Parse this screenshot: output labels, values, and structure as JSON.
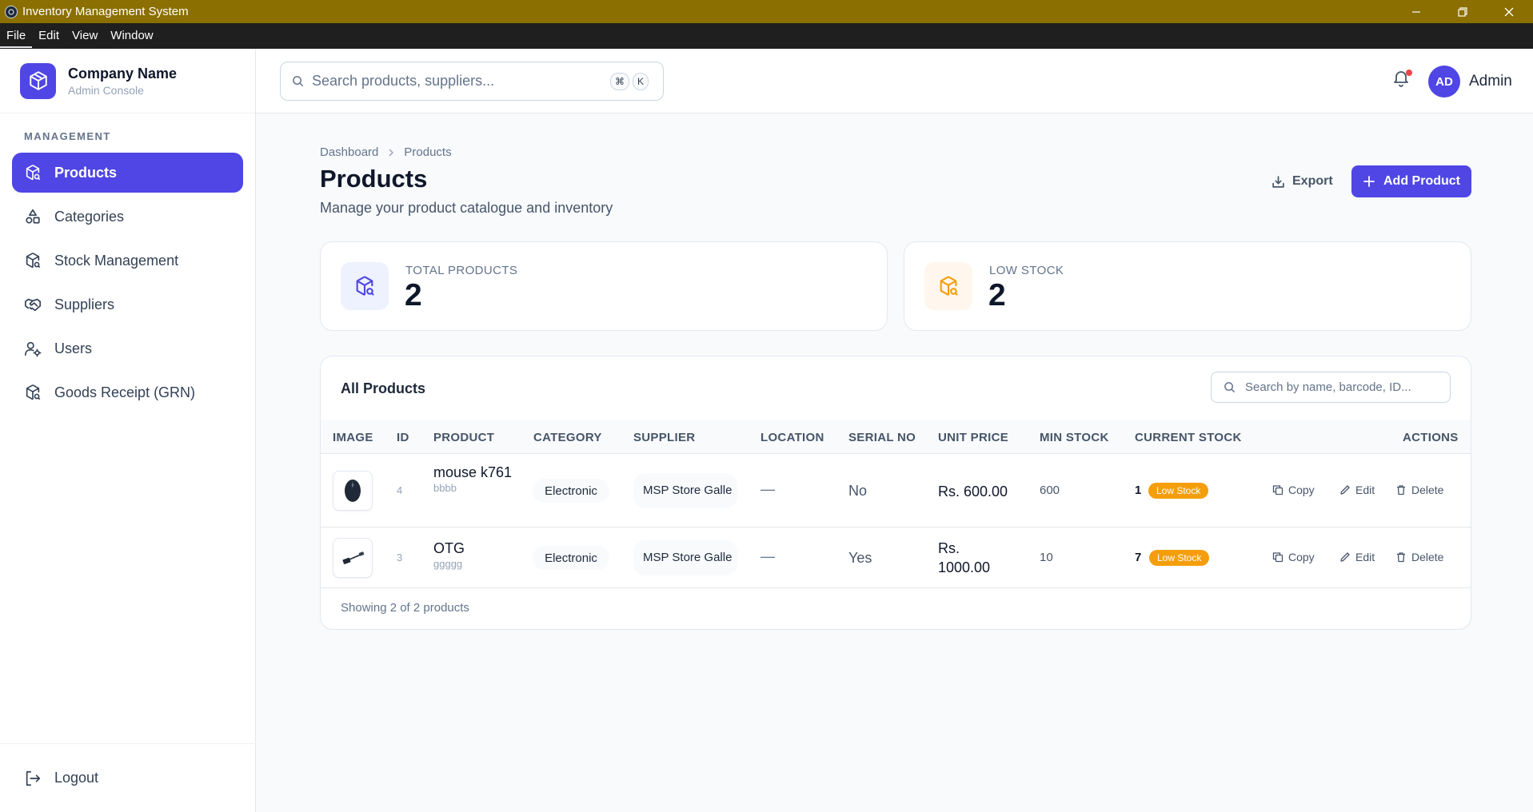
{
  "window": {
    "title": "Inventory Management System",
    "controls": [
      "minimize-icon",
      "restore-icon",
      "close-icon"
    ]
  },
  "menubar": [
    "File",
    "Edit",
    "View",
    "Window"
  ],
  "sidebar": {
    "brand_name": "Company Name",
    "brand_sub": "Admin Console",
    "section": "MANAGEMENT",
    "items": [
      {
        "label": "Products",
        "icon": "package-search-icon",
        "active": true
      },
      {
        "label": "Categories",
        "icon": "shapes-icon",
        "active": false
      },
      {
        "label": "Stock Management",
        "icon": "package-search-icon",
        "active": false
      },
      {
        "label": "Suppliers",
        "icon": "handshake-icon",
        "active": false
      },
      {
        "label": "Users",
        "icon": "user-cog-icon",
        "active": false
      },
      {
        "label": "Goods Receipt (GRN)",
        "icon": "package-search-icon",
        "active": false
      }
    ],
    "logout": "Logout"
  },
  "header": {
    "search_placeholder": "Search products, suppliers...",
    "kbd_cmd": "⌘",
    "kbd_k": "K",
    "avatar_initials": "AD",
    "user_name": "Admin"
  },
  "main": {
    "breadcrumb": [
      "Dashboard",
      "Products"
    ],
    "title": "Products",
    "subtitle": "Manage your product catalogue and inventory",
    "export_label": "Export",
    "add_label": "Add Product"
  },
  "stats": [
    {
      "label": "TOTAL PRODUCTS",
      "value": "2",
      "color": "#4f46e5",
      "bg": "#eef2ff"
    },
    {
      "label": "LOW STOCK",
      "value": "2",
      "color": "#f59e0b",
      "bg": "#fff7ed"
    }
  ],
  "table": {
    "title": "All Products",
    "search_placeholder": "Search by name, barcode, ID...",
    "columns": [
      "IMAGE",
      "ID",
      "PRODUCT",
      "CATEGORY",
      "SUPPLIER",
      "LOCATION",
      "SERIAL NO",
      "UNIT PRICE",
      "MIN STOCK",
      "CURRENT STOCK",
      "ACTIONS"
    ],
    "rows": [
      {
        "id": "4",
        "product": "mouse k761",
        "description": "bbbb",
        "category": "Electronic",
        "supplier": "MSP Store Galle",
        "location": "—",
        "serial": "No",
        "price": "Rs. 600.00",
        "min_stock": "600",
        "current_stock": "1",
        "badge": "Low Stock",
        "image": "mouse-image"
      },
      {
        "id": "3",
        "product": "OTG",
        "description": "ggggg",
        "category": "Electronic",
        "supplier": "MSP Store Galle",
        "location": "—",
        "serial": "Yes",
        "price": "Rs. 1000.00",
        "min_stock": "10",
        "current_stock": "7",
        "badge": "Low Stock",
        "image": "otg-adapter-image"
      }
    ],
    "actions": [
      "Copy",
      "Edit",
      "Delete"
    ],
    "footer": "Showing 2 of 2 products"
  }
}
